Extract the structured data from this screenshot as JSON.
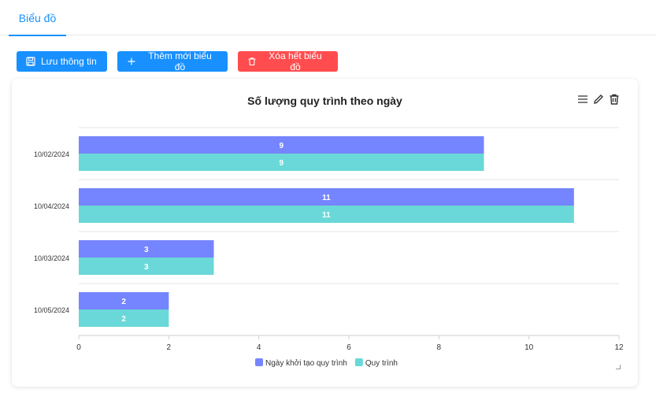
{
  "tabs": [
    {
      "label": "Biểu đồ"
    }
  ],
  "toolbar": {
    "save_label": "Lưu thông tin",
    "add_label": "Thêm mới biểu đồ",
    "clear_label": "Xóa hết biểu đồ"
  },
  "colors": {
    "primary": "#1890ff",
    "danger": "#ff4d4f",
    "series1": "#7585ff",
    "series2": "#6ad8d8"
  },
  "chart_data": {
    "type": "bar",
    "orientation": "horizontal",
    "title": "Số lượng quy trình theo ngày",
    "categories": [
      "10/02/2024",
      "10/04/2024",
      "10/03/2024",
      "10/05/2024"
    ],
    "series": [
      {
        "name": "Ngày khởi tạo quy trình",
        "values": [
          9,
          11,
          3,
          2
        ]
      },
      {
        "name": "Quy trình",
        "values": [
          9,
          11,
          3,
          2
        ]
      }
    ],
    "xlim": [
      0,
      12
    ],
    "xticks": [
      0,
      2,
      4,
      6,
      8,
      10,
      12
    ],
    "grid": true,
    "legend": "bottom"
  }
}
